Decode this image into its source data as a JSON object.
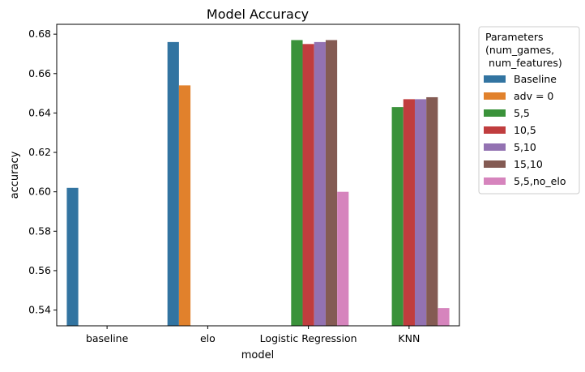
{
  "chart_data": {
    "type": "bar",
    "title": "Model Accuracy",
    "xlabel": "model",
    "ylabel": "accuracy",
    "categories": [
      "baseline",
      "elo",
      "Logistic Regression",
      "KNN"
    ],
    "ylim": [
      0.532,
      0.685
    ],
    "yticks": [
      0.54,
      0.56,
      0.58,
      0.6,
      0.62,
      0.64,
      0.66,
      0.68
    ],
    "ytick_labels": [
      "0.54",
      "0.56",
      "0.58",
      "0.60",
      "0.62",
      "0.64",
      "0.66",
      "0.68"
    ],
    "grid": false,
    "legend": {
      "title": "Parameters\n(num_games,\n num_features)",
      "placement": "outside-right"
    },
    "series": [
      {
        "name": "Baseline",
        "color": "#3274a1",
        "values": [
          0.602,
          0.676,
          null,
          null
        ]
      },
      {
        "name": "adv = 0",
        "color": "#e1812c",
        "values": [
          null,
          0.654,
          null,
          null
        ]
      },
      {
        "name": "5,5",
        "color": "#3a923a",
        "values": [
          null,
          null,
          0.677,
          0.643
        ]
      },
      {
        "name": "10,5",
        "color": "#c03d3e",
        "values": [
          null,
          null,
          0.675,
          0.647
        ]
      },
      {
        "name": "5,10",
        "color": "#9372b2",
        "values": [
          null,
          null,
          0.676,
          0.647
        ]
      },
      {
        "name": "15,10",
        "color": "#845b53",
        "values": [
          null,
          null,
          0.677,
          0.648
        ]
      },
      {
        "name": "5,5,no_elo",
        "color": "#d684bd",
        "values": [
          null,
          null,
          0.6,
          0.541
        ]
      }
    ]
  }
}
